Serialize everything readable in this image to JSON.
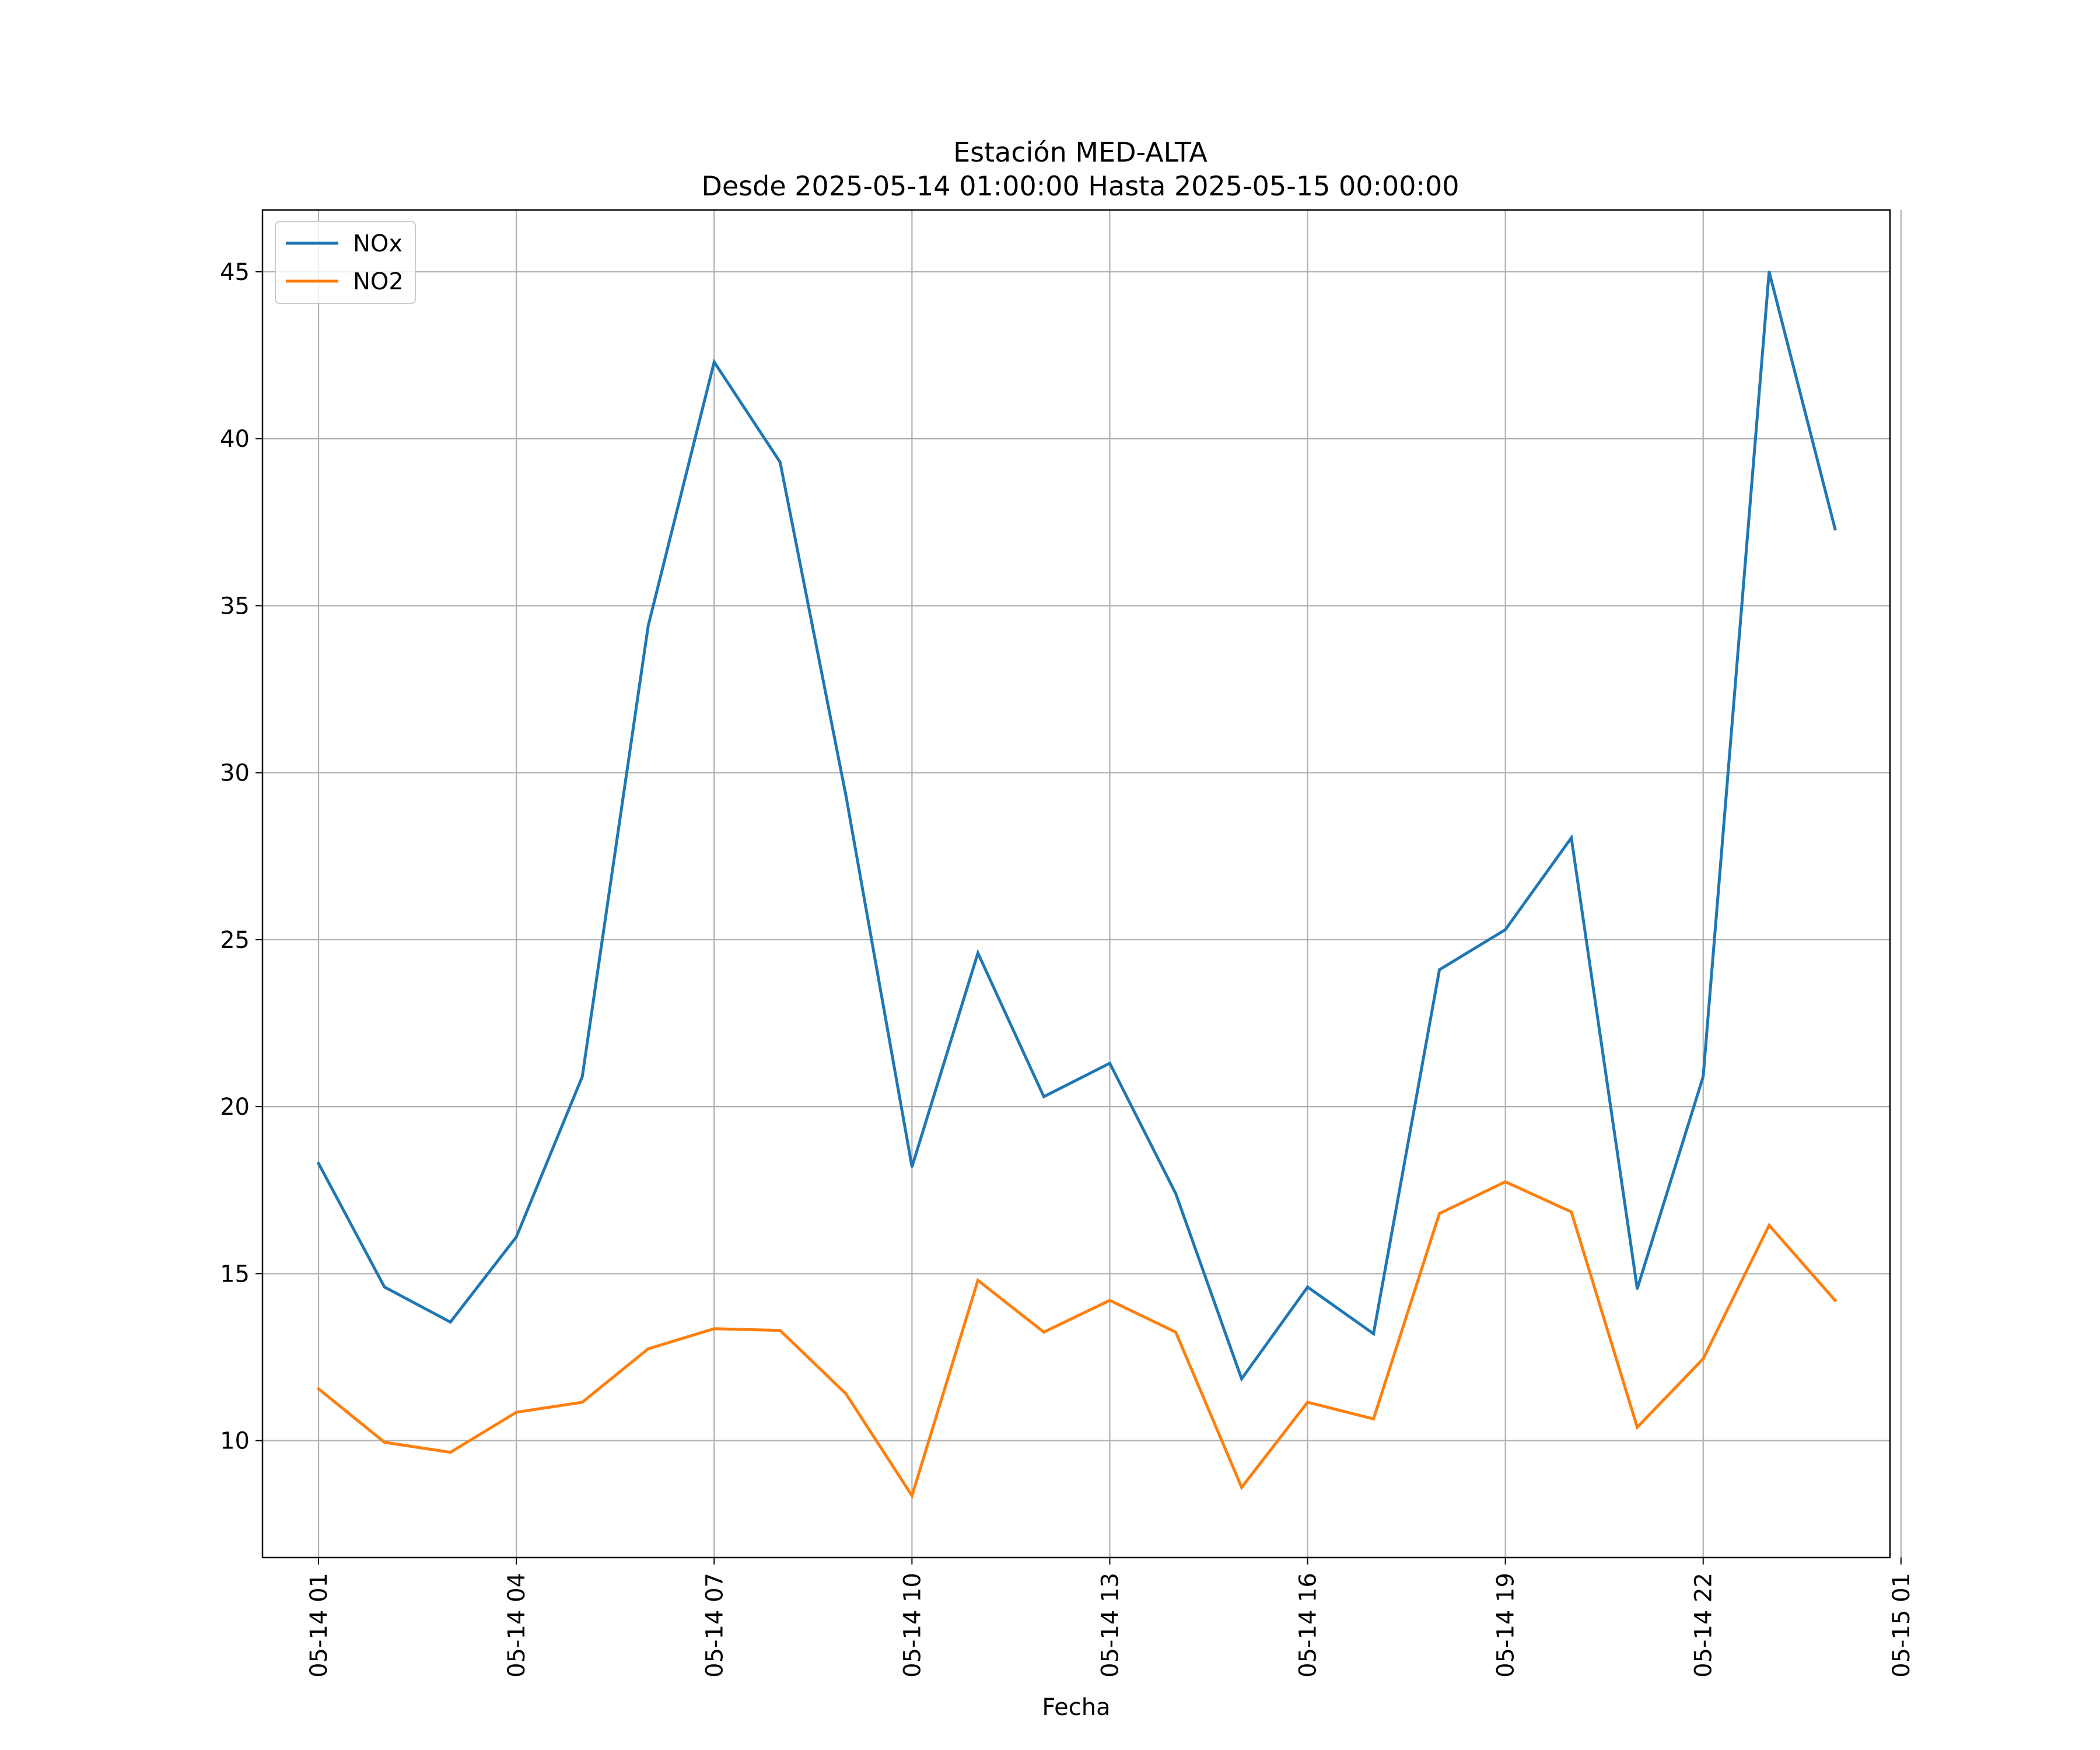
{
  "chart_data": {
    "type": "line",
    "title": "Estación MED-ALTA",
    "subtitle": "Desde 2025-05-14 01:00:00 Hasta 2025-05-15 00:00:00",
    "xlabel": "Fecha",
    "ylabel": "",
    "x": [
      "2025-05-14 01:00",
      "2025-05-14 02:00",
      "2025-05-14 03:00",
      "2025-05-14 04:00",
      "2025-05-14 05:00",
      "2025-05-14 06:00",
      "2025-05-14 07:00",
      "2025-05-14 08:00",
      "2025-05-14 09:00",
      "2025-05-14 10:00",
      "2025-05-14 11:00",
      "2025-05-14 12:00",
      "2025-05-14 13:00",
      "2025-05-14 14:00",
      "2025-05-14 15:00",
      "2025-05-14 16:00",
      "2025-05-14 17:00",
      "2025-05-14 18:00",
      "2025-05-14 19:00",
      "2025-05-14 20:00",
      "2025-05-14 21:00",
      "2025-05-14 22:00",
      "2025-05-14 23:00",
      "2025-05-15 00:00"
    ],
    "series": [
      {
        "name": "NOx",
        "color": "#1f77b4",
        "values": [
          18.3,
          14.6,
          13.55,
          16.1,
          20.9,
          34.4,
          42.3,
          39.3,
          29.3,
          18.2,
          24.6,
          20.3,
          21.3,
          17.4,
          11.85,
          14.6,
          13.2,
          24.1,
          25.3,
          28.05,
          14.55,
          20.9,
          45.0,
          37.3
        ]
      },
      {
        "name": "NO2",
        "color": "#ff7f0e",
        "values": [
          11.55,
          9.95,
          9.65,
          10.85,
          11.15,
          12.75,
          13.35,
          13.3,
          11.4,
          8.35,
          14.8,
          13.25,
          14.2,
          13.25,
          8.6,
          11.15,
          10.65,
          16.8,
          17.75,
          16.85,
          10.4,
          12.45,
          16.45,
          14.2
        ]
      }
    ],
    "ylim": [
      6.5,
      46.85
    ],
    "xlim": [
      "2025-05-14 00:09",
      "2025-05-15 00:50"
    ],
    "yticks": [
      10,
      15,
      20,
      25,
      30,
      35,
      40,
      45
    ],
    "xticks": [
      {
        "label": "05-14 01",
        "value": "2025-05-14 01:00"
      },
      {
        "label": "05-14 04",
        "value": "2025-05-14 04:00"
      },
      {
        "label": "05-14 07",
        "value": "2025-05-14 07:00"
      },
      {
        "label": "05-14 10",
        "value": "2025-05-14 10:00"
      },
      {
        "label": "05-14 13",
        "value": "2025-05-14 13:00"
      },
      {
        "label": "05-14 16",
        "value": "2025-05-14 16:00"
      },
      {
        "label": "05-14 19",
        "value": "2025-05-14 19:00"
      },
      {
        "label": "05-14 22",
        "value": "2025-05-14 22:00"
      },
      {
        "label": "05-15 01",
        "value": "2025-05-15 01:00"
      }
    ],
    "grid": true,
    "legend": "top-left"
  }
}
